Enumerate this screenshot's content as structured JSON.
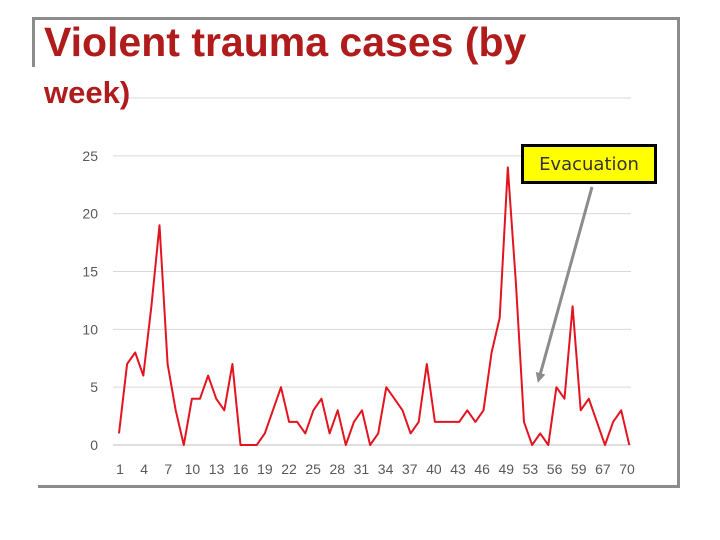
{
  "slide": {
    "title_line1": "Violent trauma cases (by",
    "title_line2": "week)"
  },
  "annotation": {
    "label": "Evacuation"
  },
  "colors": {
    "series": "#e3141f",
    "title": "#b01c1c",
    "grid": "#d9d9d9",
    "axis_text": "#595959",
    "callout_fill": "#ffff00",
    "arrow": "#8c8c8c"
  },
  "chart_data": {
    "type": "line",
    "title": "",
    "xlabel": "",
    "ylabel": "",
    "ylim": [
      0,
      30
    ],
    "yticks": [
      0,
      5,
      10,
      15,
      20,
      25
    ],
    "x_tick_labels": [
      "1",
      "4",
      "7",
      "10",
      "13",
      "16",
      "19",
      "22",
      "25",
      "28",
      "31",
      "34",
      "37",
      "40",
      "43",
      "46",
      "49",
      "53",
      "56",
      "59",
      "67",
      "70"
    ],
    "grid": true,
    "legend": "none",
    "series": [
      {
        "values": [
          1,
          7,
          8,
          6,
          12,
          19,
          7,
          3,
          0,
          4,
          4,
          6,
          4,
          3,
          7,
          0,
          0,
          0,
          1,
          3,
          5,
          2,
          2,
          1,
          3,
          4,
          1,
          3,
          0,
          2,
          3,
          0,
          1,
          5,
          4,
          3,
          1,
          2,
          7,
          2,
          2,
          2,
          2,
          3,
          2,
          3,
          8,
          11,
          24,
          14,
          2,
          0,
          1,
          0,
          5,
          4,
          12,
          3,
          4,
          2,
          0,
          2,
          3,
          0
        ]
      }
    ],
    "annotation": {
      "text": "Evacuation",
      "points_to_index": 52
    }
  }
}
